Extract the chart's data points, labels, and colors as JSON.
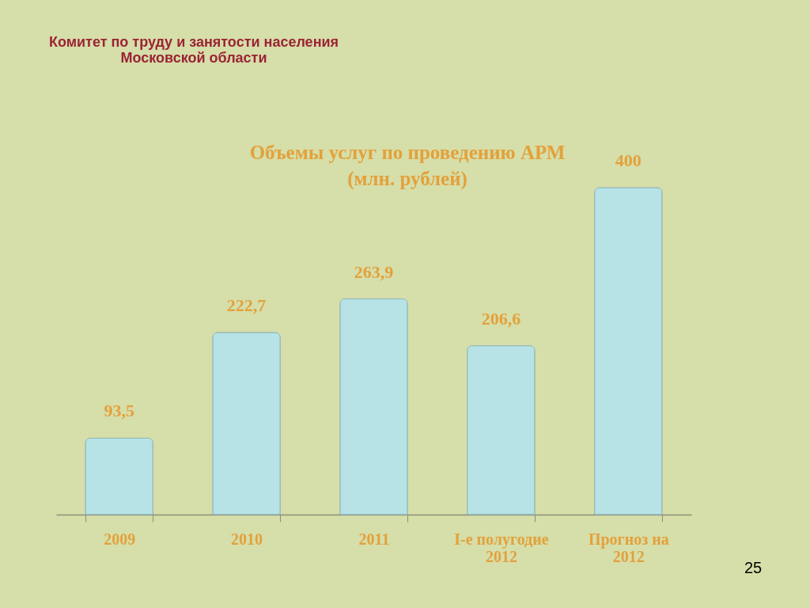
{
  "chart_data": {
    "type": "bar",
    "title": "Объемы услуг по проведению АРМ",
    "subtitle": "(млн. рублей)",
    "categories": [
      "2009",
      "2010",
      "2011",
      "I-е полугодие 2012",
      "Прогноз на 2012"
    ],
    "values": [
      93.5,
      222.7,
      263.9,
      206.6,
      400
    ],
    "value_labels": [
      "93,5",
      "222,7",
      "263,9",
      "206,6",
      "400"
    ],
    "color": "#b7e3e6",
    "tick_labels": "x",
    "annotations": [
      "Комитет по труду и занятости населения Московской области",
      "25"
    ]
  }
}
